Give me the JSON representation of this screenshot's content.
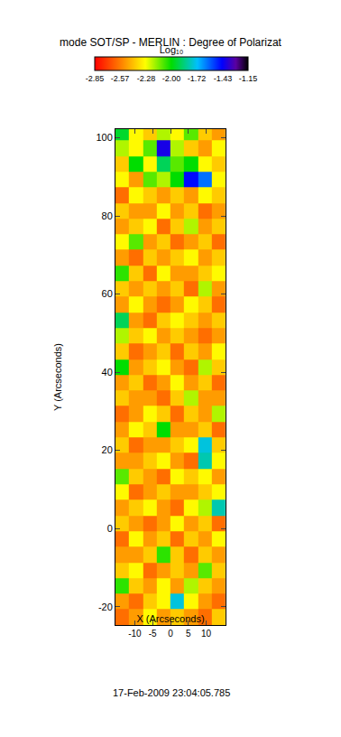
{
  "chart_data": {
    "type": "heatmap",
    "title": "mode SOT/SP - MERLIN : Degree of Polarizat",
    "xlabel": "X (Arcseconds)",
    "ylabel": "Y (Arcseconds)",
    "annotations": [
      "17-Feb-2009 23:04:05.785"
    ],
    "xlim": [
      -15.4,
      15.4
    ],
    "ylim": [
      -24.7,
      102.2
    ],
    "xticks": [
      -10,
      -5,
      0,
      5,
      10
    ],
    "yticks": [
      -20,
      0,
      20,
      40,
      60,
      80,
      100
    ],
    "x": [
      -13.5,
      -9.6,
      -5.8,
      -1.9,
      1.9,
      5.8,
      9.6,
      13.5
    ],
    "y": [
      -22.7,
      -18.7,
      -14.7,
      -10.7,
      -6.7,
      -2.7,
      1.3,
      5.3,
      9.3,
      13.3,
      17.3,
      21.3,
      25.3,
      29.3,
      33.3,
      37.3,
      41.3,
      45.3,
      49.3,
      53.3,
      57.3,
      61.3,
      65.3,
      69.3,
      73.3,
      77.3,
      81.3,
      85.3,
      89.3,
      93.3,
      97.3,
      101.3
    ],
    "z": [
      [
        -2.6,
        -2.5,
        -2.3,
        -2.5,
        -2.4,
        -2.5,
        -2.6,
        -2.4
      ],
      [
        -2.5,
        -2.6,
        -2.4,
        -2.3,
        -1.75,
        -2.3,
        -2.5,
        -2.6
      ],
      [
        -2.05,
        -2.4,
        -2.5,
        -2.3,
        -2.5,
        -2.2,
        -2.4,
        -2.5
      ],
      [
        -2.4,
        -2.3,
        -2.6,
        -2.5,
        -2.4,
        -2.5,
        -2.1,
        -2.4
      ],
      [
        -2.5,
        -2.5,
        -2.4,
        -2.05,
        -2.4,
        -2.6,
        -2.4,
        -2.5
      ],
      [
        -2.6,
        -2.3,
        -2.5,
        -2.4,
        -2.6,
        -2.4,
        -2.5,
        -2.3
      ],
      [
        -2.4,
        -2.5,
        -2.6,
        -2.5,
        -2.3,
        -2.5,
        -2.4,
        -2.6
      ],
      [
        -2.5,
        -2.4,
        -2.3,
        -2.5,
        -2.6,
        -2.3,
        -2.2,
        -1.8
      ],
      [
        -2.3,
        -2.6,
        -2.5,
        -2.4,
        -2.5,
        -2.5,
        -2.4,
        -2.3
      ],
      [
        -2.1,
        -2.4,
        -2.5,
        -2.6,
        -2.3,
        -2.4,
        -2.3,
        -2.5
      ],
      [
        -2.5,
        -2.5,
        -2.4,
        -2.3,
        -2.5,
        -2.6,
        -1.8,
        -2.3
      ],
      [
        -2.4,
        -2.6,
        -2.5,
        -2.5,
        -2.4,
        -2.3,
        -1.75,
        -2.4
      ],
      [
        -2.5,
        -2.3,
        -2.4,
        -2.0,
        -2.5,
        -2.5,
        -2.4,
        -2.6
      ],
      [
        -2.6,
        -2.5,
        -2.3,
        -2.4,
        -2.6,
        -2.4,
        -2.5,
        -2.2
      ],
      [
        -2.4,
        -2.5,
        -2.5,
        -2.6,
        -2.4,
        -2.2,
        -2.5,
        -2.5
      ],
      [
        -2.5,
        -2.4,
        -2.6,
        -2.5,
        -2.3,
        -2.5,
        -2.4,
        -2.6
      ],
      [
        -2.0,
        -2.5,
        -2.4,
        -2.3,
        -2.5,
        -2.6,
        -2.2,
        -2.4
      ],
      [
        -2.4,
        -2.6,
        -2.5,
        -2.4,
        -2.6,
        -2.4,
        -2.5,
        -2.3
      ],
      [
        -2.2,
        -2.4,
        -2.3,
        -2.5,
        -2.4,
        -2.5,
        -2.6,
        -2.5
      ],
      [
        -1.9,
        -2.5,
        -2.6,
        -2.4,
        -2.3,
        -2.4,
        -2.5,
        -2.4
      ],
      [
        -2.5,
        -2.3,
        -2.5,
        -2.6,
        -2.5,
        -2.3,
        -2.4,
        -2.6
      ],
      [
        -2.4,
        -2.5,
        -2.4,
        -2.5,
        -2.4,
        -2.6,
        -2.2,
        -2.5
      ],
      [
        -2.05,
        -2.4,
        -2.6,
        -2.3,
        -2.5,
        -2.5,
        -2.4,
        -2.3
      ],
      [
        -2.5,
        -2.6,
        -2.4,
        -2.5,
        -2.4,
        -2.3,
        -2.5,
        -2.4
      ],
      [
        -2.3,
        -2.1,
        -2.5,
        -2.4,
        -2.6,
        -2.5,
        -2.4,
        -2.6
      ],
      [
        -2.5,
        -2.4,
        -2.3,
        -2.6,
        -2.4,
        -2.2,
        -2.5,
        -2.4
      ],
      [
        -2.4,
        -2.5,
        -2.5,
        -2.3,
        -2.5,
        -2.4,
        -2.6,
        -2.5
      ],
      [
        -2.6,
        -2.3,
        -2.4,
        -2.5,
        -2.4,
        -2.5,
        -2.3,
        -2.4
      ],
      [
        -2.3,
        -2.5,
        -2.1,
        -2.2,
        -2.0,
        -1.45,
        -1.6,
        -2.3
      ],
      [
        -2.4,
        -2.0,
        -2.3,
        -1.9,
        -2.1,
        -2.0,
        -2.3,
        -2.4
      ],
      [
        -2.2,
        -2.3,
        -2.1,
        -1.4,
        -2.2,
        -2.4,
        -2.5,
        -2.3
      ],
      [
        -1.95,
        -2.3,
        -2.4,
        -2.2,
        -2.3,
        -2.1,
        -2.4,
        -2.5
      ]
    ],
    "colorbar": {
      "title": "Log₁₀",
      "range": [
        -2.85,
        -1.15
      ],
      "ticks": [
        -2.85,
        -2.57,
        -2.28,
        {
          "value": -2,
          "label": "-2.00"
        },
        -1.72,
        -1.43,
        -1.15
      ]
    }
  }
}
